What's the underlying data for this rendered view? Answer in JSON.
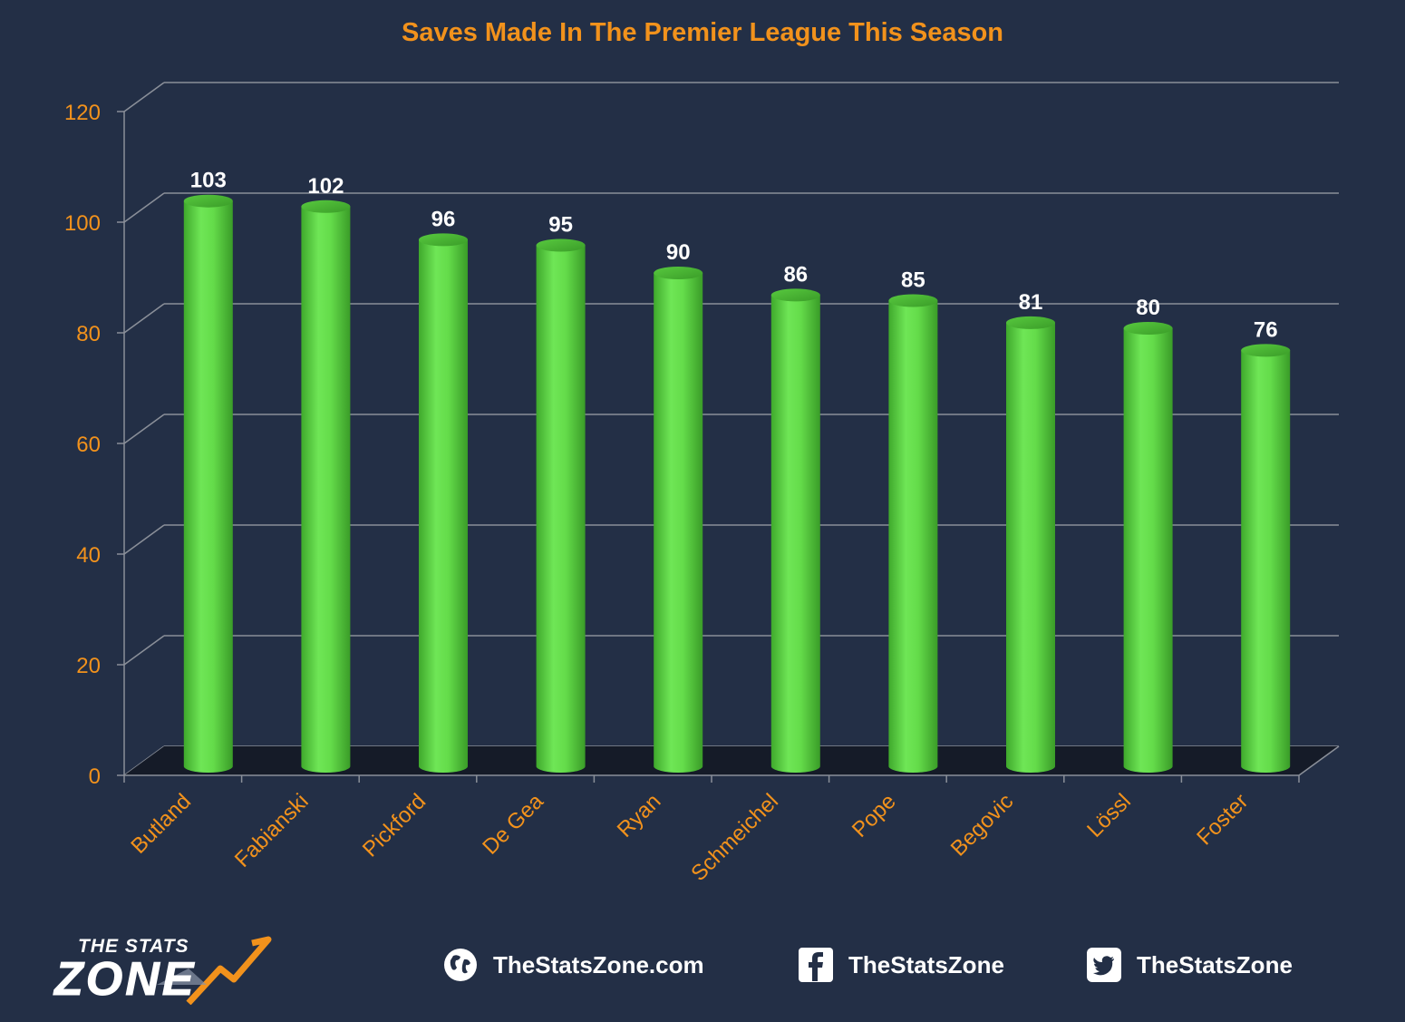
{
  "chart_data": {
    "type": "bar",
    "title": "Saves Made In The Premier League This Season",
    "categories": [
      "Butland",
      "Fabianski",
      "Pickford",
      "De Gea",
      "Ryan",
      "Schmeichel",
      "Pope",
      "Begovic",
      "Lössl",
      "Foster"
    ],
    "values": [
      103,
      102,
      96,
      95,
      90,
      86,
      85,
      81,
      80,
      76
    ],
    "ylim": [
      0,
      120
    ],
    "yticks": [
      0,
      20,
      40,
      60,
      80,
      100,
      120
    ],
    "xlabel": "",
    "ylabel": "",
    "grid": true,
    "legend": "none",
    "bar_color": "#62d94a",
    "axis_label_color": "#f2921c",
    "data_label_color": "#ffffff"
  },
  "footer": {
    "logo_line1": "THE STATS",
    "logo_line2": "ZONE",
    "website": "TheStatsZone.com",
    "facebook": "TheStatsZone",
    "twitter": "TheStatsZone",
    "website_icon": "globe-icon",
    "facebook_icon": "facebook-icon",
    "twitter_icon": "twitter-icon"
  },
  "colors": {
    "background": "#232f46",
    "title": "#f2921c",
    "gridline": "#8a8f99"
  }
}
